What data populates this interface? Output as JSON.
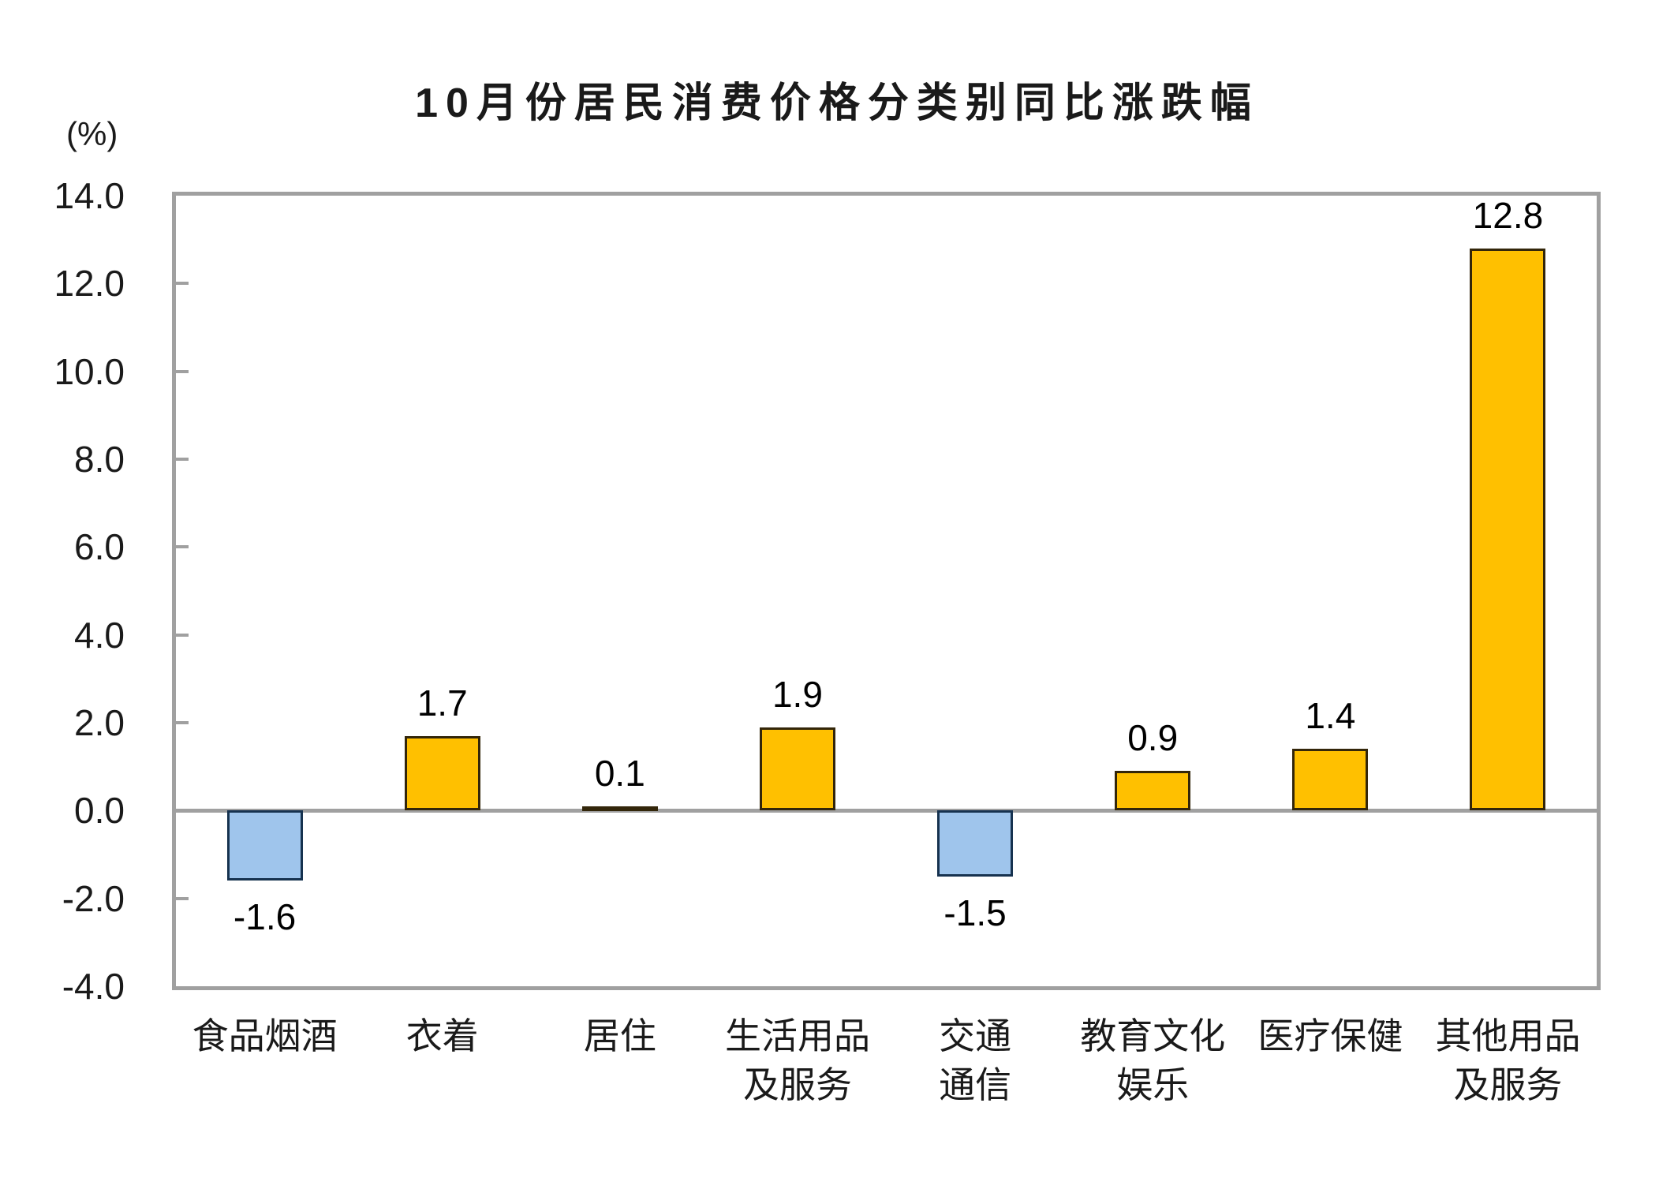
{
  "chart_data": {
    "type": "bar",
    "title": "10月份居民消费价格分类别同比涨跌幅",
    "ylabel": "(%)",
    "categories": [
      [
        "食品烟酒"
      ],
      [
        "衣着"
      ],
      [
        "居住"
      ],
      [
        "生活用品",
        "及服务"
      ],
      [
        "交通",
        "通信"
      ],
      [
        "教育文化",
        "娱乐"
      ],
      [
        "医疗保健"
      ],
      [
        "其他用品",
        "及服务"
      ]
    ],
    "values": [
      -1.6,
      1.7,
      0.1,
      1.9,
      -1.5,
      0.9,
      1.4,
      12.8
    ],
    "value_labels": [
      "-1.6",
      "1.7",
      "0.1",
      "1.9",
      "-1.5",
      "0.9",
      "1.4",
      "12.8"
    ],
    "ylim": [
      -4.0,
      14.0
    ],
    "ytick_step": 2.0,
    "y_ticks": [
      "14.0",
      "12.0",
      "10.0",
      "8.0",
      "6.0",
      "4.0",
      "2.0",
      "0.0",
      "-2.0",
      "-4.0"
    ],
    "grid": false,
    "legend_position": "none",
    "colors": {
      "positive_fill": "#FFC000",
      "positive_border": "#33260A",
      "negative_fill": "#9FC5EC",
      "negative_border": "#16324F",
      "axis": "#A0A0A0",
      "text": "#000000"
    }
  }
}
